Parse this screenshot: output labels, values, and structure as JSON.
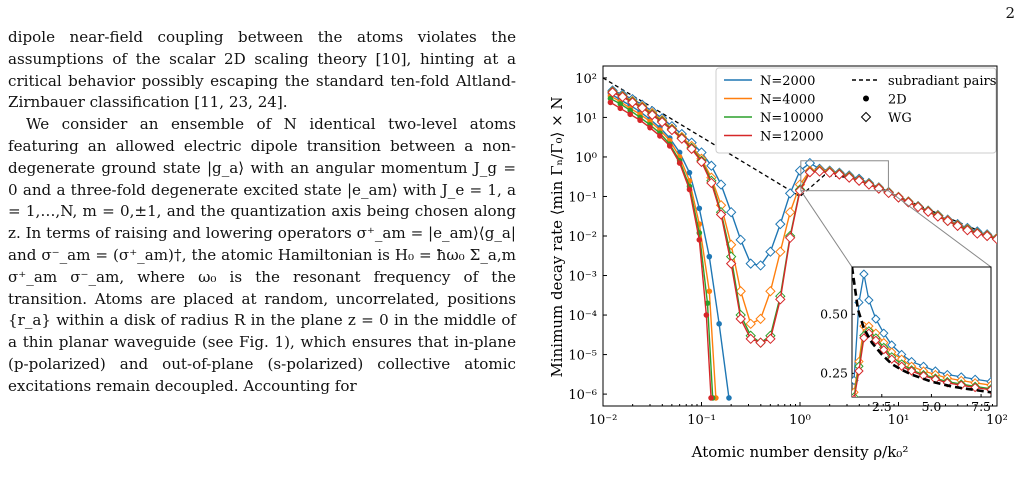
{
  "page_number": "2",
  "paragraphs": [
    "dipole near-field coupling between the atoms violates the assumptions of the scalar 2D scaling theory [10], hinting at a critical behavior possibly escaping the standard ten-fold Altland-Zirnbauer classification [11, 23, 24].",
    "We consider an ensemble of N identical two-level atoms featuring an allowed electric dipole transition between a non-degenerate ground state |g_a⟩ with an angular momentum J_g = 0 and a three-fold degenerate excited state |e_am⟩ with J_e = 1, a = 1,…,N, m = 0,±1, and the quantization axis being chosen along z. In terms of raising and lowering operators σ⁺_am = |e_am⟩⟨g_a| and σ⁻_am = (σ⁺_am)†, the atomic Hamiltonian is H₀ = ħω₀ Σ_a,m σ⁺_am σ⁻_am, where ω₀ is the resonant frequency of the transition. Atoms are placed at random, uncorrelated, positions {r_a} within a disk of radius R in the plane z = 0 in the middle of a thin planar waveguide (see Fig. 1), which ensures that in-plane (p-polarized) and out-of-plane (s-polarized) collective atomic excitations remain decoupled. Accounting for"
  ],
  "colors": {
    "N2000": "#1f77b4",
    "N4000": "#ff7f0e",
    "N10000": "#2ca02c",
    "N12000": "#d62728",
    "subradiant": "#000000"
  },
  "chart_data": {
    "type": "line",
    "xlabel": "Atomic number density ρ/k₀²",
    "ylabel": "Minimum decay rate ⟨min Γₙ/Γ₀⟩ × N",
    "xscale": "log",
    "yscale": "log",
    "xlim": [
      0.01,
      100
    ],
    "ylim": [
      5e-07,
      200
    ],
    "x_ticks": [
      "10⁻²",
      "10⁻¹",
      "10⁰",
      "10¹",
      "10²"
    ],
    "y_ticks": [
      "10⁻⁶",
      "10⁻⁵",
      "10⁻⁴",
      "10⁻³",
      "10⁻²",
      "10⁻¹",
      "10⁰",
      "10¹",
      "10²"
    ],
    "legend": {
      "placement": "top-right",
      "entries": [
        "N=2000",
        "N=4000",
        "N=10000",
        "N=12000",
        "subradiant pairs",
        "2D",
        "WG"
      ]
    },
    "series": [
      {
        "name": "N=2000",
        "x_2d": [
          0.0119,
          0.015,
          0.0189,
          0.0238,
          0.03,
          0.0378,
          0.0476,
          0.06,
          0.0755,
          0.095,
          0.12,
          0.151,
          0.19
        ],
        "y_2d": [
          40,
          28,
          20,
          14,
          9,
          5.5,
          3,
          1.3,
          0.4,
          0.05,
          0.003,
          6e-05,
          8e-07
        ],
        "x_wg": [
          0.0125,
          0.0158,
          0.0199,
          0.025,
          0.0316,
          0.0398,
          0.0501,
          0.0631,
          0.0794,
          0.1,
          0.126,
          0.158,
          0.2,
          0.25,
          0.316,
          0.398,
          0.501,
          0.631,
          0.794,
          1,
          1.26,
          1.58,
          2,
          2.51,
          3.16,
          3.98,
          5.01,
          6.31,
          7.94,
          10,
          12.6,
          15.8,
          20,
          25.1,
          31.6,
          39.8,
          50.1,
          63.1,
          79.4,
          100
        ],
        "y_wg": [
          48,
          38,
          29,
          21,
          14.5,
          9.5,
          6,
          3.8,
          2.3,
          1.3,
          0.6,
          0.2,
          0.04,
          0.008,
          0.002,
          0.0018,
          0.004,
          0.02,
          0.12,
          0.45,
          0.7,
          0.5,
          0.45,
          0.4,
          0.34,
          0.28,
          0.22,
          0.17,
          0.13,
          0.098,
          0.075,
          0.057,
          0.044,
          0.034,
          0.026,
          0.02,
          0.016,
          0.013,
          0.011,
          0.009
        ]
      },
      {
        "name": "N=4000",
        "x_2d": [
          0.0119,
          0.015,
          0.0189,
          0.0238,
          0.03,
          0.0378,
          0.0476,
          0.06,
          0.0755,
          0.095,
          0.12,
          0.14
        ],
        "y_2d": [
          35,
          25,
          17,
          12,
          8,
          4.8,
          2.6,
          1,
          0.25,
          0.02,
          0.0004,
          8e-07
        ],
        "x_wg": [
          0.0125,
          0.0158,
          0.0199,
          0.025,
          0.0316,
          0.0398,
          0.0501,
          0.0631,
          0.0794,
          0.1,
          0.126,
          0.158,
          0.2,
          0.25,
          0.316,
          0.398,
          0.501,
          0.631,
          0.794,
          1,
          1.26,
          1.58,
          2,
          2.51,
          3.16,
          3.98,
          5.01,
          6.31,
          7.94,
          10,
          12.6,
          15.8,
          20,
          25.1,
          31.6,
          39.8,
          50.1,
          63.1,
          79.4,
          100
        ],
        "y_wg": [
          45,
          35,
          26,
          19,
          13,
          8.5,
          5.2,
          3.2,
          1.9,
          0.9,
          0.3,
          0.06,
          0.006,
          0.0004,
          6e-05,
          8e-05,
          0.0004,
          0.004,
          0.04,
          0.2,
          0.45,
          0.47,
          0.43,
          0.38,
          0.32,
          0.26,
          0.21,
          0.165,
          0.128,
          0.097,
          0.074,
          0.056,
          0.043,
          0.033,
          0.025,
          0.019,
          0.015,
          0.012,
          0.0105,
          0.0088
        ]
      },
      {
        "name": "N=10000",
        "x_2d": [
          0.0119,
          0.015,
          0.0189,
          0.0238,
          0.03,
          0.0378,
          0.0476,
          0.06,
          0.0755,
          0.095,
          0.115,
          0.13
        ],
        "y_2d": [
          30,
          22,
          15,
          10,
          6.5,
          4,
          2.1,
          0.8,
          0.18,
          0.012,
          0.0002,
          8e-07
        ],
        "x_wg": [
          0.0125,
          0.0158,
          0.0199,
          0.025,
          0.0316,
          0.0398,
          0.0501,
          0.0631,
          0.0794,
          0.1,
          0.126,
          0.158,
          0.2,
          0.25,
          0.316,
          0.398,
          0.501,
          0.631,
          0.794,
          1,
          1.26,
          1.58,
          2,
          2.51,
          3.16,
          3.98,
          5.01,
          6.31,
          7.94,
          10,
          12.6,
          15.8,
          20,
          25.1,
          31.6,
          39.8,
          50.1,
          63.1,
          79.4,
          100
        ],
        "y_wg": [
          44,
          34,
          25,
          18,
          12,
          8,
          5,
          3,
          1.7,
          0.8,
          0.25,
          0.04,
          0.003,
          0.0001,
          3e-05,
          2e-05,
          3e-05,
          0.0003,
          0.01,
          0.15,
          0.42,
          0.44,
          0.41,
          0.37,
          0.31,
          0.255,
          0.205,
          0.16,
          0.125,
          0.095,
          0.072,
          0.055,
          0.042,
          0.032,
          0.024,
          0.0185,
          0.0145,
          0.0118,
          0.0102,
          0.0085
        ]
      },
      {
        "name": "N=12000",
        "x_2d": [
          0.0119,
          0.015,
          0.0189,
          0.0238,
          0.03,
          0.0378,
          0.0476,
          0.06,
          0.0755,
          0.095,
          0.112,
          0.125
        ],
        "y_2d": [
          24,
          17,
          12,
          8.5,
          5.5,
          3.4,
          1.9,
          0.7,
          0.15,
          0.008,
          0.0001,
          8e-07
        ],
        "x_wg": [
          0.0125,
          0.0158,
          0.0199,
          0.025,
          0.0316,
          0.0398,
          0.0501,
          0.0631,
          0.0794,
          0.1,
          0.126,
          0.158,
          0.2,
          0.25,
          0.316,
          0.398,
          0.501,
          0.631,
          0.794,
          1,
          1.26,
          1.58,
          2,
          2.51,
          3.16,
          3.98,
          5.01,
          6.31,
          7.94,
          10,
          12.6,
          15.8,
          20,
          25.1,
          31.6,
          39.8,
          50.1,
          63.1,
          79.4,
          100
        ],
        "y_wg": [
          43,
          33,
          24,
          17.5,
          11.5,
          7.6,
          4.8,
          2.9,
          1.6,
          0.75,
          0.22,
          0.035,
          0.002,
          8e-05,
          2.5e-05,
          2e-05,
          2.5e-05,
          0.00025,
          0.009,
          0.14,
          0.41,
          0.43,
          0.4,
          0.36,
          0.3,
          0.25,
          0.2,
          0.158,
          0.123,
          0.094,
          0.071,
          0.054,
          0.041,
          0.031,
          0.024,
          0.018,
          0.014,
          0.0115,
          0.01,
          0.0083
        ]
      }
    ],
    "subradiant_pairs": {
      "x": [
        0.01,
        0.0178,
        0.0316,
        0.0562,
        0.1,
        0.178,
        0.316,
        0.562,
        1,
        1.78,
        3.16,
        5.62,
        10,
        17.8,
        31.6,
        56.2,
        100
      ],
      "y": [
        100,
        42,
        18,
        7.6,
        3.2,
        1.35,
        0.57,
        0.24,
        0.1,
        0.35,
        0.3,
        0.2,
        0.1,
        0.053,
        0.029,
        0.016,
        0.0085
      ]
    },
    "inset": {
      "xlim": [
        1,
        8
      ],
      "ylim": [
        0.15,
        0.7
      ],
      "x_ticks": [
        "2.5",
        "5.0",
        "7.5"
      ],
      "y_ticks": [
        "0.25",
        "0.50"
      ],
      "subradiant_x": [
        1,
        1.3,
        1.6,
        2,
        2.5,
        3,
        3.5,
        4,
        4.5,
        5,
        5.5,
        6,
        6.5,
        7,
        7.5,
        8
      ],
      "subradiant_y": [
        0.7,
        0.52,
        0.44,
        0.38,
        0.33,
        0.29,
        0.265,
        0.245,
        0.23,
        0.215,
        0.205,
        0.195,
        0.188,
        0.182,
        0.176,
        0.17
      ],
      "series": [
        {
          "name": "N=2000",
          "x": [
            1.1,
            1.35,
            1.6,
            1.85,
            2.2,
            2.6,
            3.0,
            3.5,
            4.0,
            4.6,
            5.2,
            5.8,
            6.5,
            7.2,
            8.0
          ],
          "y": [
            0.22,
            0.55,
            0.67,
            0.56,
            0.48,
            0.42,
            0.37,
            0.33,
            0.3,
            0.28,
            0.26,
            0.245,
            0.235,
            0.225,
            0.215
          ]
        },
        {
          "name": "N=4000",
          "x": [
            1.1,
            1.35,
            1.6,
            1.85,
            2.2,
            2.6,
            3.0,
            3.5,
            4.0,
            4.6,
            5.2,
            5.8,
            6.5,
            7.2,
            8.0
          ],
          "y": [
            0.17,
            0.3,
            0.45,
            0.45,
            0.42,
            0.38,
            0.34,
            0.31,
            0.28,
            0.26,
            0.245,
            0.23,
            0.22,
            0.21,
            0.2
          ]
        },
        {
          "name": "N=10000",
          "x": [
            1.1,
            1.35,
            1.6,
            1.85,
            2.2,
            2.6,
            3.0,
            3.5,
            4.0,
            4.6,
            5.2,
            5.8,
            6.5,
            7.2,
            8.0
          ],
          "y": [
            0.15,
            0.28,
            0.41,
            0.43,
            0.4,
            0.36,
            0.32,
            0.29,
            0.265,
            0.245,
            0.23,
            0.215,
            0.205,
            0.195,
            0.185
          ]
        },
        {
          "name": "N=12000",
          "x": [
            1.1,
            1.35,
            1.6,
            1.85,
            2.2,
            2.6,
            3.0,
            3.5,
            4.0,
            4.6,
            5.2,
            5.8,
            6.5,
            7.2,
            8.0
          ],
          "y": [
            0.14,
            0.26,
            0.4,
            0.42,
            0.39,
            0.35,
            0.31,
            0.28,
            0.26,
            0.24,
            0.225,
            0.21,
            0.2,
            0.19,
            0.18
          ]
        }
      ]
    }
  }
}
